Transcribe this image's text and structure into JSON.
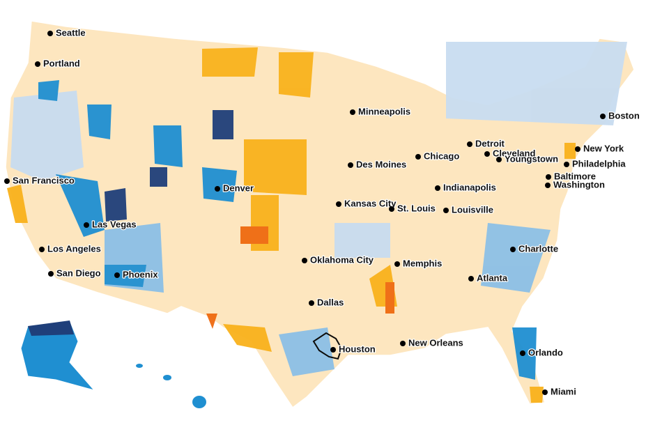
{
  "map": {
    "cities": [
      {
        "name": "Seattle"
      },
      {
        "name": "Portland"
      },
      {
        "name": "San Francisco"
      },
      {
        "name": "Las Vegas"
      },
      {
        "name": "Los Angeles"
      },
      {
        "name": "San Diego"
      },
      {
        "name": "Phoenix"
      },
      {
        "name": "Denver"
      },
      {
        "name": "Minneapolis"
      },
      {
        "name": "Des Moines"
      },
      {
        "name": "Kansas City"
      },
      {
        "name": "Oklahoma City"
      },
      {
        "name": "Dallas"
      },
      {
        "name": "Houston"
      },
      {
        "name": "New Orleans"
      },
      {
        "name": "Memphis"
      },
      {
        "name": "St. Louis"
      },
      {
        "name": "Chicago"
      },
      {
        "name": "Indianapolis"
      },
      {
        "name": "Louisville"
      },
      {
        "name": "Detroit"
      },
      {
        "name": "Cleveland"
      },
      {
        "name": "Youngstown"
      },
      {
        "name": "Atlanta"
      },
      {
        "name": "Charlotte"
      },
      {
        "name": "Orlando"
      },
      {
        "name": "Miami"
      },
      {
        "name": "Boston"
      },
      {
        "name": "New York"
      },
      {
        "name": "Philadelphia"
      },
      {
        "name": "Baltimore"
      },
      {
        "name": "Washington"
      }
    ]
  }
}
